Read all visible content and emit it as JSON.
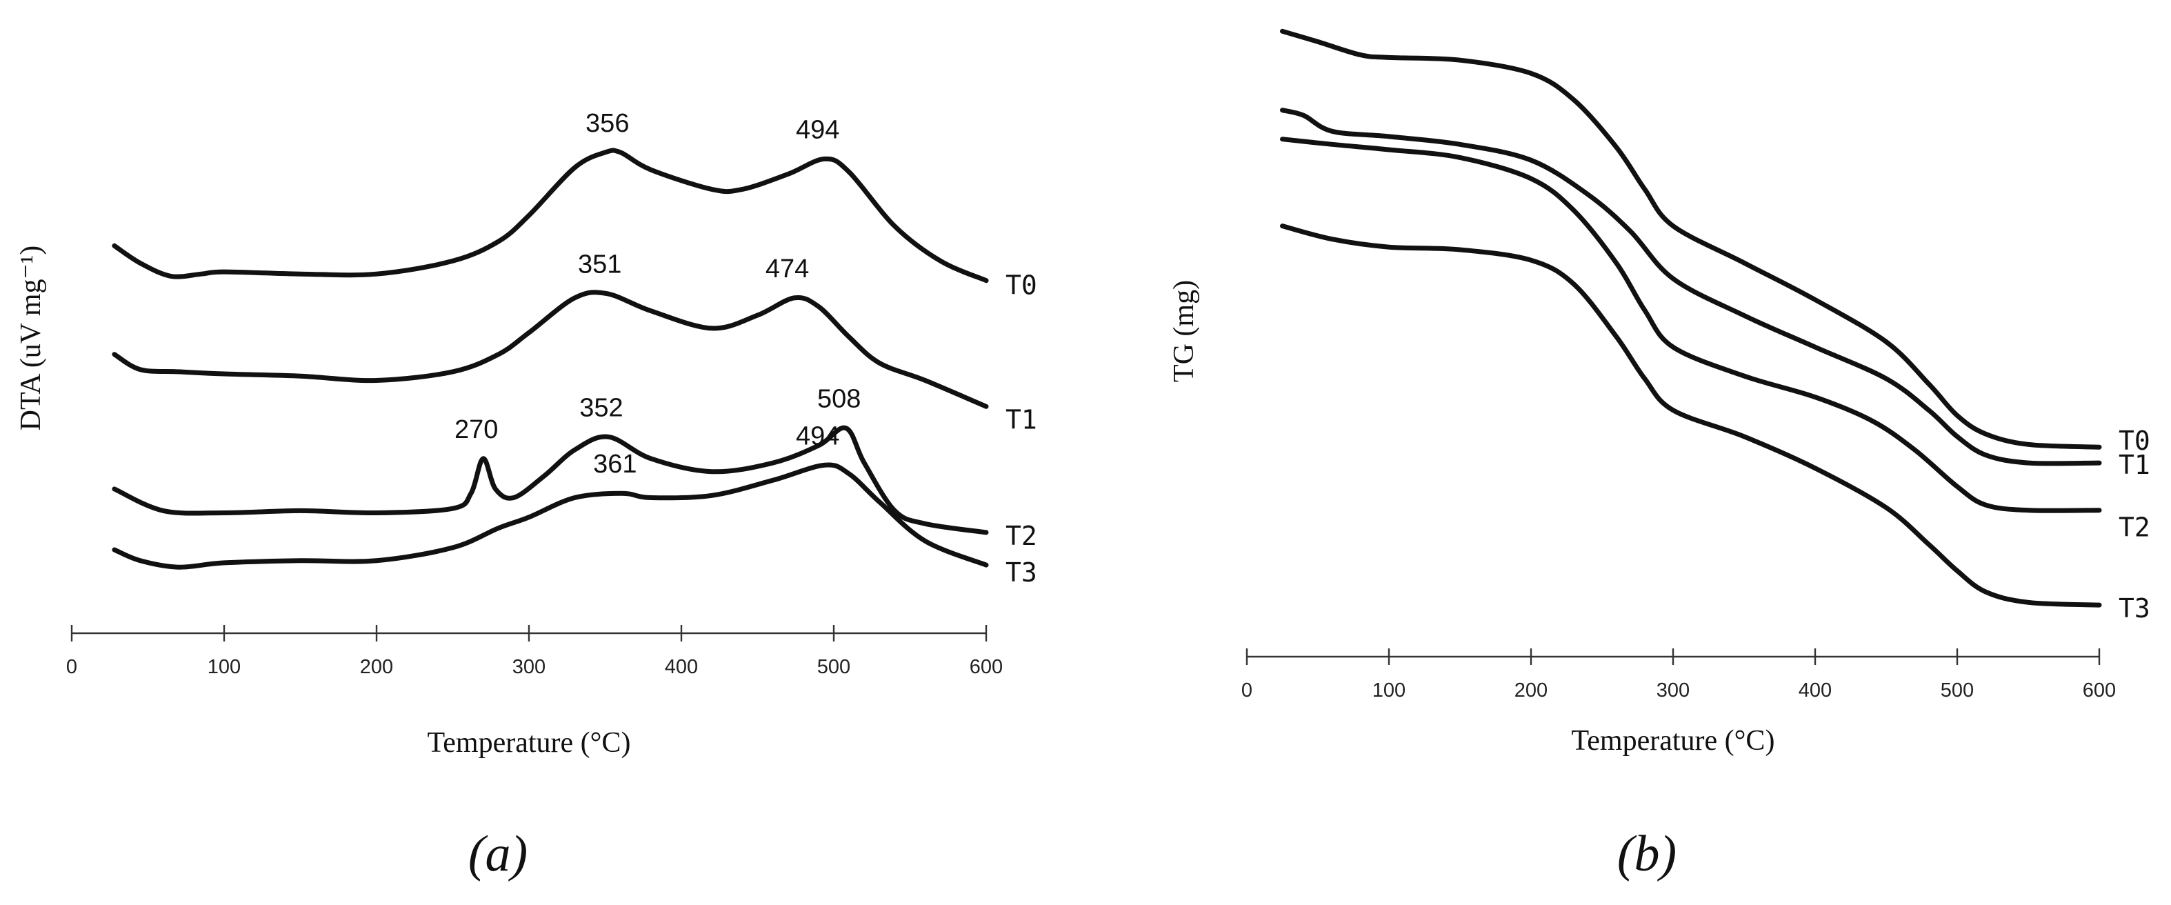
{
  "chart_data": [
    {
      "panel_label": "(a)",
      "type": "line",
      "xlabel": "Temperature (°C)",
      "ylabel": "DTA (uV mg⁻¹)",
      "xlim": [
        0,
        600
      ],
      "xticks": [
        "0",
        "100",
        "200",
        "300",
        "400",
        "500",
        "600"
      ],
      "y_tick_labels": false,
      "grid": false,
      "legend": "series labels at right end of each curve",
      "series": [
        {
          "name": "T0",
          "x": [
            28,
            45,
            65,
            85,
            100,
            150,
            200,
            250,
            280,
            300,
            330,
            350,
            360,
            380,
            420,
            440,
            470,
            494,
            510,
            540,
            570,
            600
          ],
          "y": [
            -0.2,
            -0.6,
            -0.9,
            -0.85,
            -0.8,
            -0.85,
            -0.85,
            -0.55,
            -0.1,
            0.5,
            1.6,
            1.95,
            1.95,
            1.55,
            1.1,
            1.1,
            1.45,
            1.8,
            1.5,
            0.25,
            -0.55,
            -1.0
          ]
        },
        {
          "name": "T1",
          "x": [
            28,
            45,
            70,
            100,
            150,
            200,
            250,
            280,
            300,
            330,
            351,
            380,
            420,
            450,
            474,
            490,
            510,
            530,
            560,
            600
          ],
          "y": [
            -2.7,
            -3.05,
            -3.1,
            -3.15,
            -3.2,
            -3.3,
            -3.1,
            -2.7,
            -2.2,
            -1.4,
            -1.3,
            -1.7,
            -2.1,
            -1.8,
            -1.4,
            -1.6,
            -2.3,
            -2.9,
            -3.3,
            -3.9
          ]
        },
        {
          "name": "T2",
          "x": [
            28,
            60,
            100,
            150,
            200,
            250,
            262,
            270,
            278,
            290,
            310,
            330,
            352,
            380,
            420,
            460,
            490,
            508,
            520,
            540,
            560,
            600
          ],
          "y": [
            -5.8,
            -6.3,
            -6.35,
            -6.3,
            -6.35,
            -6.25,
            -5.9,
            -5.1,
            -5.8,
            -6.0,
            -5.5,
            -4.9,
            -4.6,
            -5.1,
            -5.4,
            -5.2,
            -4.8,
            -4.4,
            -5.2,
            -6.3,
            -6.6,
            -6.8
          ]
        },
        {
          "name": "T3",
          "x": [
            28,
            45,
            70,
            100,
            150,
            200,
            250,
            280,
            300,
            330,
            361,
            380,
            420,
            460,
            494,
            510,
            530,
            560,
            600
          ],
          "y": [
            -7.2,
            -7.45,
            -7.6,
            -7.5,
            -7.45,
            -7.45,
            -7.15,
            -6.7,
            -6.45,
            -6.0,
            -5.9,
            -6.0,
            -5.95,
            -5.6,
            -5.25,
            -5.45,
            -6.1,
            -7.0,
            -7.55
          ]
        }
      ],
      "peak_labels": [
        {
          "text": "356",
          "series": "T0",
          "x": 356
        },
        {
          "text": "494",
          "series": "T0",
          "x": 494
        },
        {
          "text": "351",
          "series": "T1",
          "x": 351
        },
        {
          "text": "474",
          "series": "T1",
          "x": 474
        },
        {
          "text": "270",
          "series": "T2",
          "x": 270
        },
        {
          "text": "352",
          "series": "T2",
          "x": 352
        },
        {
          "text": "508",
          "series": "T2",
          "x": 508
        },
        {
          "text": "361",
          "series": "T3",
          "x": 361
        },
        {
          "text": "494",
          "series": "T3",
          "x": 494
        }
      ]
    },
    {
      "panel_label": "(b)",
      "type": "line",
      "xlabel": "Temperature (°C)",
      "ylabel": "TG (mg)",
      "xlim": [
        0,
        600
      ],
      "xticks": [
        "0",
        "100",
        "200",
        "300",
        "400",
        "500",
        "600"
      ],
      "y_tick_labels": false,
      "grid": false,
      "legend": "series labels at right end of each curve",
      "series": [
        {
          "name": "T0",
          "x": [
            25,
            50,
            80,
            100,
            150,
            200,
            230,
            260,
            280,
            300,
            350,
            400,
            450,
            480,
            500,
            520,
            550,
            600
          ],
          "y": [
            10.0,
            9.8,
            9.55,
            9.5,
            9.45,
            9.2,
            8.7,
            7.8,
            7.0,
            6.3,
            5.6,
            4.9,
            4.1,
            3.3,
            2.7,
            2.35,
            2.15,
            2.1
          ]
        },
        {
          "name": "T1",
          "x": [
            25,
            40,
            60,
            100,
            150,
            200,
            240,
            270,
            300,
            350,
            400,
            450,
            480,
            500,
            520,
            550,
            600
          ],
          "y": [
            8.5,
            8.4,
            8.1,
            8.0,
            7.85,
            7.55,
            6.9,
            6.2,
            5.3,
            4.6,
            4.0,
            3.4,
            2.8,
            2.3,
            1.95,
            1.8,
            1.8
          ]
        },
        {
          "name": "T2",
          "x": [
            25,
            60,
            100,
            150,
            200,
            230,
            260,
            280,
            300,
            350,
            400,
            440,
            470,
            500,
            520,
            550,
            600
          ],
          "y": [
            7.95,
            7.85,
            7.75,
            7.6,
            7.2,
            6.6,
            5.6,
            4.7,
            4.0,
            3.45,
            3.05,
            2.6,
            2.05,
            1.35,
            1.0,
            0.9,
            0.9
          ]
        },
        {
          "name": "T3",
          "x": [
            25,
            60,
            100,
            150,
            200,
            230,
            260,
            280,
            300,
            350,
            400,
            450,
            480,
            500,
            520,
            550,
            600
          ],
          "y": [
            6.3,
            6.05,
            5.9,
            5.85,
            5.65,
            5.2,
            4.2,
            3.4,
            2.8,
            2.3,
            1.7,
            0.95,
            0.25,
            -0.25,
            -0.65,
            -0.85,
            -0.9
          ]
        }
      ]
    }
  ]
}
